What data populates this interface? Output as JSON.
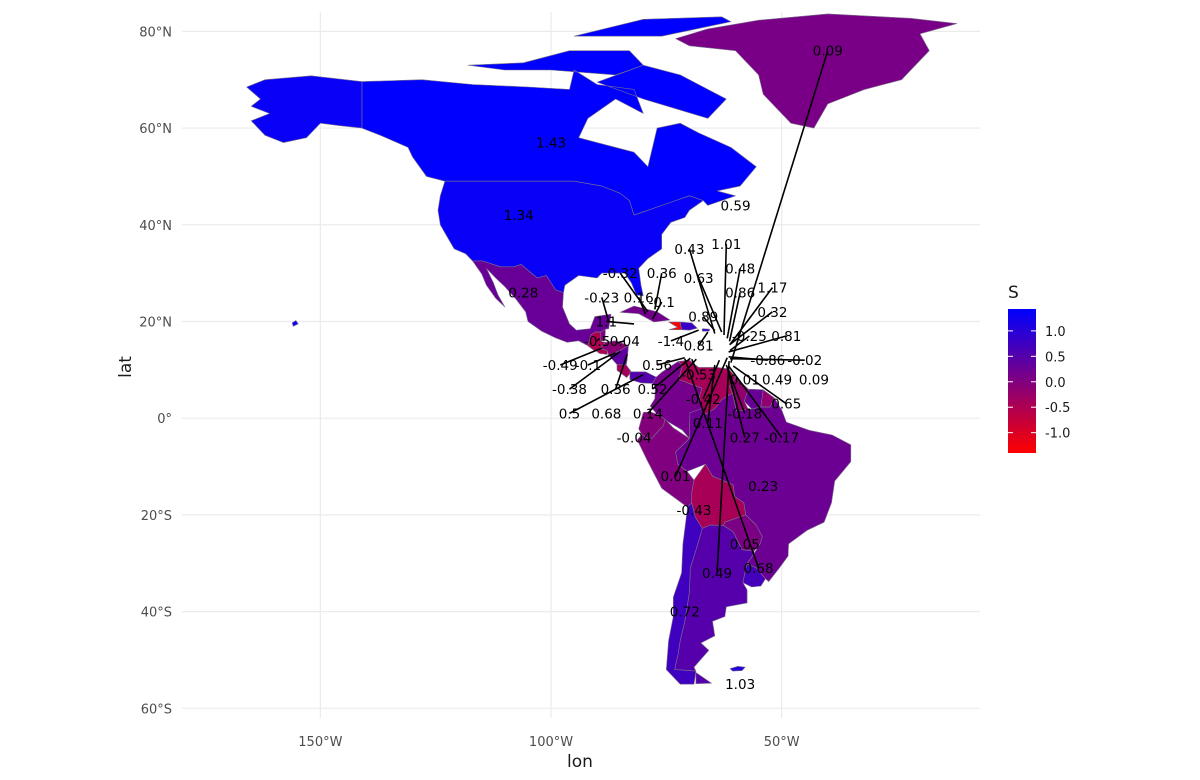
{
  "chart_data": {
    "type": "choropleth_map",
    "projection": "equirectangular",
    "xlabel": "lon",
    "ylabel": "lat",
    "xlim": [
      -180,
      -7
    ],
    "ylim": [
      -62,
      84
    ],
    "x_ticks": [
      {
        "value": -150,
        "label": "150°W"
      },
      {
        "value": -100,
        "label": "100°W"
      },
      {
        "value": -50,
        "label": "50°W"
      }
    ],
    "y_ticks": [
      {
        "value": 80,
        "label": "80°N"
      },
      {
        "value": 60,
        "label": "60°N"
      },
      {
        "value": 40,
        "label": "40°N"
      },
      {
        "value": 20,
        "label": "20°N"
      },
      {
        "value": 0,
        "label": "0°"
      },
      {
        "value": -20,
        "label": "20°S"
      },
      {
        "value": -40,
        "label": "40°S"
      },
      {
        "value": -60,
        "label": "60°S"
      }
    ],
    "grid": true,
    "legend": {
      "title": "S",
      "position": "right",
      "range": [
        -1.4,
        1.43
      ],
      "breaks": [
        {
          "value": 1.0,
          "label": "1.0"
        },
        {
          "value": 0.5,
          "label": "0.5"
        },
        {
          "value": 0.0,
          "label": "0.0"
        },
        {
          "value": -0.5,
          "label": "-0.5"
        },
        {
          "value": -1.0,
          "label": "-1.0"
        }
      ],
      "colors": {
        "low": "#ff0000",
        "high": "#0000ff"
      }
    },
    "regions": [
      {
        "name": "Canada",
        "value": 1.43
      },
      {
        "name": "United States",
        "value": 1.34
      },
      {
        "name": "Greenland",
        "value": 0.09
      },
      {
        "name": "Mexico",
        "value": 0.28
      },
      {
        "name": "Guatemala",
        "value": -0.5
      },
      {
        "name": "Belize",
        "value": 0.04
      },
      {
        "name": "Honduras",
        "value": -0.1
      },
      {
        "name": "El Salvador",
        "value": -0.49
      },
      {
        "name": "Nicaragua",
        "value": 0.36
      },
      {
        "name": "Costa Rica",
        "value": -0.38
      },
      {
        "name": "Panama",
        "value": 0.5
      },
      {
        "name": "Cuba",
        "value": 0.16
      },
      {
        "name": "Haiti",
        "value": -1.4
      },
      {
        "name": "Dominican Republic",
        "value": 0.81
      },
      {
        "name": "Puerto Rico",
        "value": 0.89
      },
      {
        "name": "Colombia",
        "value": 0.14
      },
      {
        "name": "Venezuela",
        "value": -0.42
      },
      {
        "name": "Guyana",
        "value": -0.18
      },
      {
        "name": "Suriname",
        "value": 0.27
      },
      {
        "name": "French Guiana",
        "value": -0.17
      },
      {
        "name": "Ecuador",
        "value": -0.04
      },
      {
        "name": "Peru",
        "value": 0.01
      },
      {
        "name": "Brazil",
        "value": 0.23
      },
      {
        "name": "Bolivia",
        "value": -0.43
      },
      {
        "name": "Paraguay",
        "value": 0.05
      },
      {
        "name": "Uruguay",
        "value": 0.68
      },
      {
        "name": "Argentina",
        "value": 0.49
      },
      {
        "name": "Chile",
        "value": 0.72
      },
      {
        "name": "Falkland Islands",
        "value": 1.03
      }
    ],
    "labels": [
      {
        "text": "1.43",
        "lon": -100,
        "lat": 57
      },
      {
        "text": "1.34",
        "lon": -107,
        "lat": 42
      },
      {
        "text": "0.09",
        "lon": -40,
        "lat": 76
      },
      {
        "text": "0.59",
        "lon": -60,
        "lat": 44
      },
      {
        "text": "0.28",
        "lon": -106,
        "lat": 26
      },
      {
        "text": "1.03",
        "lon": -59,
        "lat": -55
      },
      {
        "text": "0.72",
        "lon": -71,
        "lat": -40
      },
      {
        "text": "0.49",
        "lon": -64,
        "lat": -32
      },
      {
        "text": "0.68",
        "lon": -55,
        "lat": -31
      },
      {
        "text": "0.05",
        "lon": -58,
        "lat": -26
      },
      {
        "text": "0.23",
        "lon": -54,
        "lat": -14
      },
      {
        "text": "-0.43",
        "lon": -69,
        "lat": -19
      },
      {
        "text": "0.01",
        "lon": -73,
        "lat": -12
      },
      {
        "text": "-0.04",
        "lon": -82,
        "lat": -4
      },
      {
        "text": "0.11",
        "lon": -66,
        "lat": -1
      },
      {
        "text": "0.43",
        "lon": -70,
        "lat": 35
      },
      {
        "text": "1.01",
        "lon": -62,
        "lat": 36
      },
      {
        "text": "0.48",
        "lon": -59,
        "lat": 31
      },
      {
        "text": "0.63",
        "lon": -68,
        "lat": 29
      },
      {
        "text": "0.86",
        "lon": -59,
        "lat": 26
      },
      {
        "text": "1.17",
        "lon": -52,
        "lat": 27
      },
      {
        "text": "0.32",
        "lon": -52,
        "lat": 22
      },
      {
        "text": "0.89",
        "lon": -67,
        "lat": 21
      },
      {
        "text": "-0.25",
        "lon": -57,
        "lat": 17
      },
      {
        "text": "0.81",
        "lon": -49,
        "lat": 17
      },
      {
        "text": "-0.32",
        "lon": -85,
        "lat": 30
      },
      {
        "text": "0.36",
        "lon": -76,
        "lat": 30
      },
      {
        "text": "-0.23",
        "lon": -89,
        "lat": 25
      },
      {
        "text": "0.16",
        "lon": -81,
        "lat": 25
      },
      {
        "text": "-0.1",
        "lon": -76,
        "lat": 24
      },
      {
        "text": "1.1",
        "lon": -88,
        "lat": 20
      },
      {
        "text": "-0.5",
        "lon": -90,
        "lat": 16
      },
      {
        "text": "0.04",
        "lon": -84,
        "lat": 16
      },
      {
        "text": "-1.4",
        "lon": -74,
        "lat": 16
      },
      {
        "text": "0.81",
        "lon": -68,
        "lat": 15
      },
      {
        "text": "-0.49",
        "lon": -98,
        "lat": 11
      },
      {
        "text": "-0.1",
        "lon": -92,
        "lat": 11
      },
      {
        "text": "0.56",
        "lon": -77,
        "lat": 11
      },
      {
        "text": "-0.53",
        "lon": -68,
        "lat": 9
      },
      {
        "text": "-0.86",
        "lon": -53,
        "lat": 12
      },
      {
        "text": "-0.02",
        "lon": -45,
        "lat": 12
      },
      {
        "text": "0.01",
        "lon": -58,
        "lat": 8
      },
      {
        "text": "0.49",
        "lon": -51,
        "lat": 8
      },
      {
        "text": "0.09",
        "lon": -43,
        "lat": 8
      },
      {
        "text": "-0.38",
        "lon": -96,
        "lat": 6
      },
      {
        "text": "0.36",
        "lon": -86,
        "lat": 6
      },
      {
        "text": "0.52",
        "lon": -78,
        "lat": 6
      },
      {
        "text": "-0.42",
        "lon": -67,
        "lat": 4
      },
      {
        "text": "0.65",
        "lon": -49,
        "lat": 3
      },
      {
        "text": "0.5",
        "lon": -96,
        "lat": 1
      },
      {
        "text": "0.68",
        "lon": -88,
        "lat": 1
      },
      {
        "text": "0.14",
        "lon": -79,
        "lat": 1
      },
      {
        "text": "-0.18",
        "lon": -58,
        "lat": 1
      },
      {
        "text": "0.27",
        "lon": -58,
        "lat": -4
      },
      {
        "text": "-0.17",
        "lon": -50,
        "lat": -4
      }
    ]
  }
}
